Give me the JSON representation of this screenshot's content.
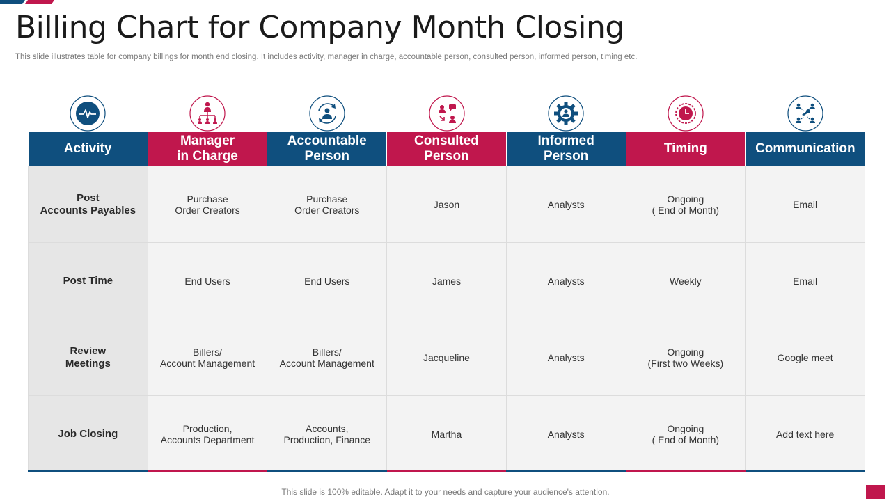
{
  "title": "Billing Chart for Company Month Closing",
  "subtitle": "This slide illustrates table for company billings for month end closing. It includes activity,  manager in charge, accountable person, consulted person, informed person, timing etc.",
  "colors": {
    "blue": "#0f4f7e",
    "red": "#c0174d",
    "cell_bg": "#f3f3f3",
    "first_col_bg": "#e6e6e6"
  },
  "columns": [
    {
      "label": "Activity",
      "icon": "pulse-icon",
      "color": "blue"
    },
    {
      "label": "Manager\nin Charge",
      "icon": "org-hierarchy-icon",
      "color": "red"
    },
    {
      "label": "Accountable\nPerson",
      "icon": "person-cycle-icon",
      "color": "blue"
    },
    {
      "label": "Consulted\nPerson",
      "icon": "discussion-icon",
      "color": "red"
    },
    {
      "label": "Informed\nPerson",
      "icon": "gear-person-icon",
      "color": "blue"
    },
    {
      "label": "Timing",
      "icon": "clock-icon",
      "color": "red"
    },
    {
      "label": "Communication",
      "icon": "network-people-icon",
      "color": "blue"
    }
  ],
  "rows": [
    [
      "Post\nAccounts  Payables",
      "Purchase\nOrder Creators",
      "Purchase\nOrder Creators",
      "Jason",
      "Analysts",
      "Ongoing\n( End of Month)",
      "Email"
    ],
    [
      "Post Time",
      "End Users",
      "End Users",
      "James",
      "Analysts",
      "Weekly",
      "Email"
    ],
    [
      "Review\nMeetings",
      "Billers/\nAccount Management",
      "Billers/\nAccount Management",
      "Jacqueline",
      "Analysts",
      "Ongoing\n(First two Weeks)",
      "Google meet"
    ],
    [
      "Job Closing",
      "Production,\nAccounts Department",
      "Accounts,\nProduction, Finance",
      "Martha",
      "Analysts",
      "Ongoing\n( End of Month)",
      "Add text here"
    ]
  ],
  "footer": "This slide is 100% editable. Adapt it to your needs and capture your audience's attention."
}
